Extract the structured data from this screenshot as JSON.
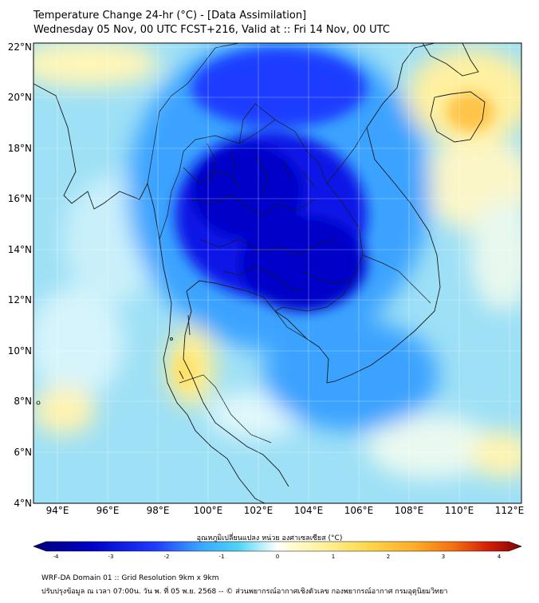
{
  "header": {
    "title_line1": "Temperature Change 24-hr (°C) - [Data Assimilation]",
    "title_line2": "Wednesday 05 Nov, 00 UTC FCST+216, Valid at :: Fri 14 Nov, 00 UTC"
  },
  "map": {
    "lat_labels": [
      "22°N",
      "20°N",
      "18°N",
      "16°N",
      "14°N",
      "12°N",
      "10°N",
      "8°N",
      "6°N",
      "4°N"
    ],
    "lon_labels": [
      "94°E",
      "96°E",
      "98°E",
      "100°E",
      "102°E",
      "104°E",
      "106°E",
      "108°E",
      "110°E",
      "112°E"
    ],
    "lat_range": [
      4,
      22.3
    ],
    "lon_range": [
      93.0,
      112.6
    ]
  },
  "colorbar": {
    "label": "อุณหภูมิเปลี่ยนแปลง หน่วย องศาเซลเซียส (°C)",
    "ticks": [
      "-4",
      "-3",
      "-2",
      "-1",
      "0",
      "1",
      "2",
      "3",
      "4"
    ],
    "range": [
      -4,
      4
    ],
    "colors": [
      "#00007a",
      "#0000c8",
      "#1f3cff",
      "#3aa3ff",
      "#4ed4f4",
      "#bff0fa",
      "#ffffff",
      "#fffbd0",
      "#fff099",
      "#ffd94c",
      "#ffae27",
      "#f56f10",
      "#d62008",
      "#7f0000"
    ]
  },
  "footer": {
    "line1": "WRF-DA Domain 01 :: Grid Resolution 9km x 9km",
    "line2": "ปรับปรุงข้อมูล ณ เวลา 07:00น. วัน พ. ที่ 05 พ.ย. 2568 -- © ส่วนพยากรณ์อากาศเชิงตัวเลข กองพยากรณ์อากาศ กรมอุตุนิยมวิทยา"
  }
}
